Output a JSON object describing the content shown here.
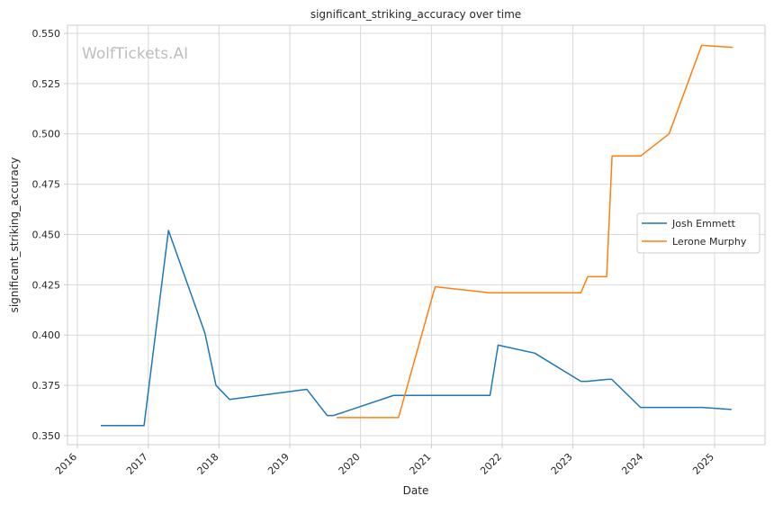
{
  "watermark": "WolfTickets.AI",
  "chart_data": {
    "type": "line",
    "title": "significant_striking_accuracy over time",
    "xlabel": "Date",
    "ylabel": "significant_striking_accuracy",
    "xlim": [
      "2015-11-11",
      "2025-09-18"
    ],
    "ylim": [
      0.3455,
      0.554
    ],
    "x_ticks": [
      "2016",
      "2017",
      "2018",
      "2019",
      "2020",
      "2021",
      "2022",
      "2023",
      "2024",
      "2025"
    ],
    "y_ticks": [
      "0.350",
      "0.375",
      "0.400",
      "0.425",
      "0.450",
      "0.475",
      "0.500",
      "0.525",
      "0.550"
    ],
    "grid": true,
    "legend_position": "center-right",
    "series": [
      {
        "name": "Josh Emmett",
        "color": "#1f77b4",
        "points": [
          [
            "2016-05-01",
            0.355
          ],
          [
            "2016-12-10",
            0.355
          ],
          [
            "2017-04-15",
            0.452
          ],
          [
            "2017-10-20",
            0.401
          ],
          [
            "2017-12-16",
            0.375
          ],
          [
            "2018-02-24",
            0.368
          ],
          [
            "2019-03-30",
            0.373
          ],
          [
            "2019-07-13",
            0.36
          ],
          [
            "2019-08-15",
            0.36
          ],
          [
            "2020-06-20",
            0.37
          ],
          [
            "2021-10-30",
            0.37
          ],
          [
            "2021-12-11",
            0.395
          ],
          [
            "2022-06-18",
            0.391
          ],
          [
            "2023-02-11",
            0.377
          ],
          [
            "2023-03-15",
            0.377
          ],
          [
            "2023-07-01",
            0.378
          ],
          [
            "2023-07-20",
            0.378
          ],
          [
            "2023-12-16",
            0.364
          ],
          [
            "2024-10-30",
            0.364
          ],
          [
            "2025-03-29",
            0.363
          ]
        ]
      },
      {
        "name": "Lerone Murphy",
        "color": "#ff7f0e",
        "points": [
          [
            "2019-08-31",
            0.359
          ],
          [
            "2020-07-15",
            0.359
          ],
          [
            "2021-01-20",
            0.424
          ],
          [
            "2021-10-30",
            0.421
          ],
          [
            "2023-02-11",
            0.421
          ],
          [
            "2023-03-18",
            0.429
          ],
          [
            "2023-06-24",
            0.429
          ],
          [
            "2023-07-22",
            0.489
          ],
          [
            "2023-12-16",
            0.489
          ],
          [
            "2024-05-11",
            0.5
          ],
          [
            "2024-10-26",
            0.544
          ],
          [
            "2025-04-05",
            0.543
          ]
        ]
      }
    ]
  }
}
